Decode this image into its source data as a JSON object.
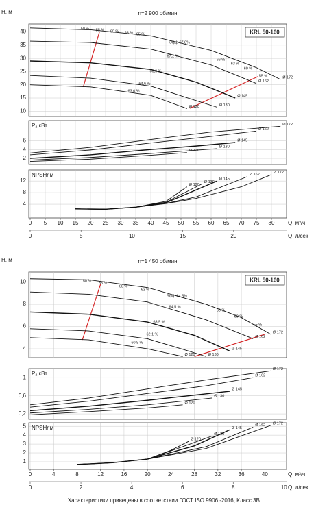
{
  "footer": "Характеристики приведены в соответствии  ГОСТ ISO 9906 -2016, Класс 3B.",
  "chart_data": [
    {
      "type": "line",
      "title": "n=2 900 об/мин",
      "label": "KRL 50-160",
      "ylabel": "H, м",
      "xlim": [
        0,
        85
      ],
      "ylim": [
        8,
        43
      ],
      "yticks": [
        10,
        15,
        20,
        25,
        30,
        35,
        40
      ],
      "grid": true,
      "annotations": [
        "50 %",
        "55 %",
        "60 %",
        "63 %",
        "65 %",
        "Эфф 67,8%",
        "67,2 %",
        "66 %",
        "63 %",
        "60 %",
        "55 %",
        "66,3 %",
        "64,6 %",
        "63,6 %"
      ],
      "series": [
        {
          "name": "Ø 172",
          "color": "#111111",
          "x": [
            0,
            20,
            40,
            60,
            75,
            83
          ],
          "values": [
            41.5,
            40.8,
            38.5,
            33,
            26.5,
            22
          ]
        },
        {
          "name": "Ø 162",
          "color": "#111111",
          "x": [
            0,
            20,
            40,
            60,
            75
          ],
          "values": [
            36.5,
            36,
            33.5,
            27.5,
            20.5
          ]
        },
        {
          "name": "Ø 145",
          "color": "#111111",
          "x": [
            0,
            20,
            40,
            55,
            68
          ],
          "values": [
            29,
            28.3,
            25.8,
            21,
            15
          ]
        },
        {
          "name": "Ø 130",
          "color": "#111111",
          "x": [
            0,
            20,
            40,
            55,
            62
          ],
          "values": [
            23.5,
            22.5,
            19.5,
            14,
            11.5
          ]
        },
        {
          "name": "Ø 120",
          "color": "#111111",
          "x": [
            0,
            20,
            40,
            52
          ],
          "values": [
            20,
            19.2,
            16,
            11
          ]
        }
      ],
      "limits": [
        {
          "color": "#d62728",
          "x": [
            17.6,
            23
          ],
          "values": [
            19.2,
            40.1
          ]
        },
        {
          "color": "#d62728",
          "x": [
            52.9,
            75.5
          ],
          "values": [
            11.1,
            23.1
          ]
        }
      ]
    },
    {
      "type": "line",
      "ylabel": "P₂,кВт",
      "xlim": [
        0,
        85
      ],
      "ylim": [
        0.6,
        10.6
      ],
      "yticks": [
        2,
        4,
        6
      ],
      "grid": true,
      "series": [
        {
          "name": "Ø 172",
          "color": "#111111",
          "x": [
            0,
            20,
            40,
            60,
            83
          ],
          "values": [
            3.2,
            4.5,
            6.3,
            8,
            9.3
          ]
        },
        {
          "name": "Ø 162",
          "color": "#111111",
          "x": [
            0,
            20,
            40,
            60,
            75
          ],
          "values": [
            2.8,
            3.9,
            5.5,
            7,
            8.2
          ]
        },
        {
          "name": "Ø 145",
          "color": "#111111",
          "x": [
            0,
            20,
            40,
            55,
            68
          ],
          "values": [
            2,
            2.8,
            4,
            4.8,
            5.6
          ]
        },
        {
          "name": "Ø 130",
          "color": "#111111",
          "x": [
            0,
            20,
            40,
            62
          ],
          "values": [
            1.6,
            2.2,
            3.1,
            4.2
          ]
        },
        {
          "name": "Ø 120",
          "color": "#111111",
          "x": [
            0,
            20,
            40,
            52
          ],
          "values": [
            1.3,
            1.8,
            2.7,
            3.3
          ]
        }
      ]
    },
    {
      "type": "line",
      "ylabel": "NPSHr,м",
      "xlabel": "Q, м³/ч",
      "x2label": "Q, л/сек",
      "xlim": [
        0,
        85
      ],
      "xticks": [
        0,
        5,
        10,
        15,
        20,
        25,
        30,
        35,
        40,
        45,
        50,
        55,
        60,
        65,
        70,
        75,
        80
      ],
      "x2lim": [
        0,
        25.2
      ],
      "x2ticks": [
        0,
        5,
        10,
        15,
        20
      ],
      "ylim": [
        -0.7,
        15.8
      ],
      "yticks": [
        4,
        8,
        12
      ],
      "grid": true,
      "series": [
        {
          "name": "Ø 172",
          "color": "#111111",
          "x": [
            15,
            25,
            35,
            45,
            55,
            70,
            80
          ],
          "values": [
            2.4,
            2.3,
            3,
            4.2,
            6,
            10,
            14.2
          ]
        },
        {
          "name": "Ø 162",
          "color": "#111111",
          "x": [
            15,
            25,
            35,
            45,
            55,
            72
          ],
          "values": [
            2.4,
            2.3,
            3,
            4.3,
            6.5,
            13.5
          ]
        },
        {
          "name": "Ø 145",
          "color": "#111111",
          "x": [
            15,
            25,
            35,
            45,
            62
          ],
          "values": [
            2.4,
            2.3,
            3,
            4.5,
            12
          ]
        },
        {
          "name": "Ø 130",
          "color": "#111111",
          "x": [
            15,
            25,
            35,
            45,
            57
          ],
          "values": [
            2.4,
            2.3,
            3,
            4.7,
            11
          ]
        },
        {
          "name": "Ø 120",
          "color": "#111111",
          "x": [
            15,
            25,
            35,
            45,
            52
          ],
          "values": [
            2.4,
            2.3,
            3,
            5,
            10
          ]
        }
      ]
    },
    {
      "type": "line",
      "title": "n=1 450 об/мин",
      "label": "KRL 50-160",
      "ylabel": "H, м",
      "xlim": [
        0,
        43.7
      ],
      "ylim": [
        3.2,
        10.9
      ],
      "yticks": [
        4,
        6,
        8,
        10
      ],
      "grid": true,
      "annotations": [
        "50 %",
        "55 %",
        "60 %",
        "63 %",
        "Эфф 64,5%",
        "64,5 %",
        "63 %",
        "60 %",
        "55 %",
        "63,5 %",
        "62,1 %",
        "60,8 %"
      ],
      "series": [
        {
          "name": "Ø 172",
          "color": "#111111",
          "x": [
            0,
            10,
            20,
            30,
            36,
            41
          ],
          "values": [
            10.3,
            10.2,
            9.5,
            8,
            6.8,
            5.3
          ]
        },
        {
          "name": "Ø 162",
          "color": "#111111",
          "x": [
            0,
            10,
            20,
            30,
            38
          ],
          "values": [
            9.1,
            8.9,
            8.2,
            6.6,
            4.9
          ]
        },
        {
          "name": "Ø 145",
          "color": "#111111",
          "x": [
            0,
            10,
            20,
            28,
            34
          ],
          "values": [
            7.3,
            7.1,
            6.4,
            5.2,
            3.8
          ]
        },
        {
          "name": "Ø 130",
          "color": "#111111",
          "x": [
            0,
            10,
            20,
            27,
            30
          ],
          "values": [
            5.8,
            5.6,
            4.9,
            3.8,
            3.3
          ]
        },
        {
          "name": "Ø 120",
          "color": "#111111",
          "x": [
            0,
            10,
            20,
            26
          ],
          "values": [
            5,
            4.8,
            4,
            3.3
          ]
        }
      ],
      "limits": [
        {
          "color": "#d62728",
          "x": [
            8.9,
            12
          ],
          "values": [
            4.8,
            9.8
          ]
        },
        {
          "color": "#d62728",
          "x": [
            28,
            40
          ],
          "values": [
            3.3,
            5.3
          ]
        }
      ]
    },
    {
      "type": "line",
      "ylabel": "P₂,кВт",
      "xlim": [
        0,
        43.7
      ],
      "ylim": [
        0.08,
        1.2
      ],
      "yticks": [
        {
          "value": 0.2,
          "label": "0,2"
        },
        {
          "value": 0.6,
          "label": "0,6"
        },
        1
      ],
      "grid": true,
      "series": [
        {
          "name": "Ø 172",
          "color": "#111111",
          "x": [
            0,
            10,
            20,
            30,
            41
          ],
          "values": [
            0.4,
            0.55,
            0.75,
            0.95,
            1.15
          ]
        },
        {
          "name": "Ø 162",
          "color": "#111111",
          "x": [
            0,
            10,
            20,
            30,
            38
          ],
          "values": [
            0.35,
            0.48,
            0.65,
            0.82,
            1.0
          ]
        },
        {
          "name": "Ø 145",
          "color": "#111111",
          "x": [
            0,
            10,
            20,
            34
          ],
          "values": [
            0.27,
            0.37,
            0.5,
            0.7
          ]
        },
        {
          "name": "Ø 130",
          "color": "#111111",
          "x": [
            0,
            10,
            20,
            31
          ],
          "values": [
            0.22,
            0.3,
            0.4,
            0.55
          ]
        },
        {
          "name": "Ø 120",
          "color": "#111111",
          "x": [
            0,
            10,
            20,
            26
          ],
          "values": [
            0.18,
            0.25,
            0.33,
            0.4
          ]
        }
      ]
    },
    {
      "type": "line",
      "ylabel": "NPSHr,м",
      "xlabel": "Q, м³/ч",
      "x2label": "Q, л/сек",
      "xlim": [
        0,
        43.7
      ],
      "xticks": [
        0,
        4,
        8,
        12,
        16,
        20,
        24,
        28,
        32,
        36,
        40
      ],
      "x2lim": [
        0,
        10.1
      ],
      "x2ticks": [
        0,
        2,
        4,
        6,
        8,
        10
      ],
      "ylim": [
        0.15,
        5.4
      ],
      "yticks": [
        1,
        2,
        3,
        4,
        5
      ],
      "grid": true,
      "series": [
        {
          "name": "Ø 172",
          "color": "#111111",
          "x": [
            8,
            14,
            20,
            30,
            41
          ],
          "values": [
            0.7,
            0.9,
            1.3,
            2.5,
            5.1
          ]
        },
        {
          "name": "Ø 162",
          "color": "#111111",
          "x": [
            8,
            14,
            20,
            30,
            38
          ],
          "values": [
            0.7,
            0.9,
            1.3,
            2.7,
            4.9
          ]
        },
        {
          "name": "Ø 145",
          "color": "#111111",
          "x": [
            8,
            14,
            20,
            28,
            34
          ],
          "values": [
            0.7,
            0.9,
            1.3,
            2.8,
            4.6
          ]
        },
        {
          "name": "Ø 130",
          "color": "#111111",
          "x": [
            8,
            14,
            20,
            26,
            31
          ],
          "values": [
            0.7,
            0.9,
            1.3,
            2.7,
            3.9
          ]
        },
        {
          "name": "Ø 120",
          "color": "#111111",
          "x": [
            8,
            14,
            20,
            24,
            27
          ],
          "values": [
            0.7,
            0.9,
            1.3,
            2.3,
            3.3
          ]
        }
      ]
    }
  ]
}
